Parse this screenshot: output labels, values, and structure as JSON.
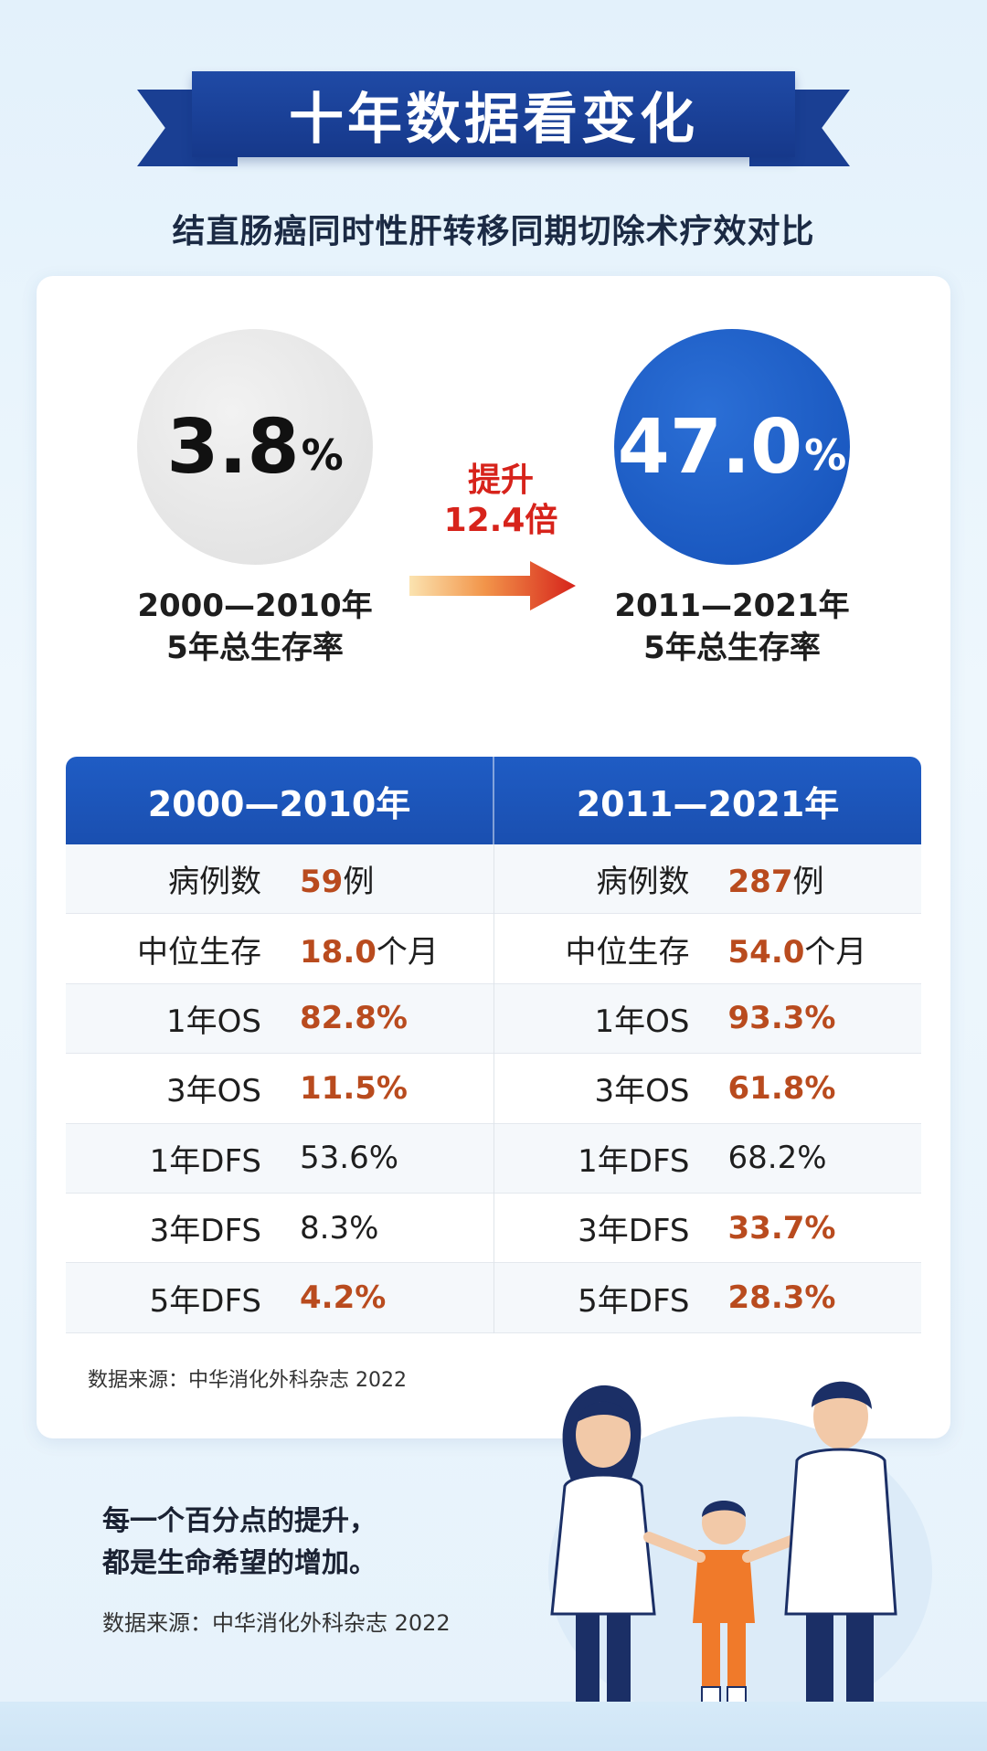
{
  "header": {
    "title": "十年数据看变化",
    "subtitle": "结直肠癌同时性肝转移同期切除术疗效对比"
  },
  "summary": {
    "before": {
      "value": "3.8",
      "unit": "%",
      "period": "2000—2010年",
      "metric": "5年总生存率"
    },
    "after": {
      "value": "47.0",
      "unit": "%",
      "period": "2011—2021年",
      "metric": "5年总生存率"
    },
    "increase_label": "提升",
    "increase_value": "12.4倍"
  },
  "table": {
    "columns": [
      "2000—2010年",
      "2011—2021年"
    ],
    "left": [
      {
        "label": "病例数",
        "value": "59",
        "unit": "例",
        "highlight": true
      },
      {
        "label": "中位生存",
        "value": "18.0",
        "unit": "个月",
        "highlight": true
      },
      {
        "label": "1年OS",
        "value": "82.8%",
        "unit": "",
        "highlight": true
      },
      {
        "label": "3年OS",
        "value": "11.5%",
        "unit": "",
        "highlight": true
      },
      {
        "label": "1年DFS",
        "value": "53.6%",
        "unit": "",
        "highlight": false
      },
      {
        "label": "3年DFS",
        "value": "8.3%",
        "unit": "",
        "highlight": false
      },
      {
        "label": "5年DFS",
        "value": "4.2%",
        "unit": "",
        "highlight": true
      }
    ],
    "right": [
      {
        "label": "病例数",
        "value": "287",
        "unit": "例",
        "highlight": true
      },
      {
        "label": "中位生存",
        "value": "54.0",
        "unit": "个月",
        "highlight": true
      },
      {
        "label": "1年OS",
        "value": "93.3%",
        "unit": "",
        "highlight": true
      },
      {
        "label": "3年OS",
        "value": "61.8%",
        "unit": "",
        "highlight": true
      },
      {
        "label": "1年DFS",
        "value": "68.2%",
        "unit": "",
        "highlight": false
      },
      {
        "label": "3年DFS",
        "value": "33.7%",
        "unit": "",
        "highlight": true
      },
      {
        "label": "5年DFS",
        "value": "28.3%",
        "unit": "",
        "highlight": true
      }
    ]
  },
  "card_source": "数据来源：中华消化外科杂志 2022",
  "footer": {
    "slogan_line1": "每一个百分点的提升，",
    "slogan_line2": "都是生命希望的增加。",
    "source": "数据来源：中华消化外科杂志 2022"
  },
  "colors": {
    "banner": "#1a3f93",
    "accent_blue": "#1a4fb0",
    "highlight_orange": "#b94b1e",
    "increase_red": "#d7231b"
  },
  "illustration": "doctor-family-illustration"
}
